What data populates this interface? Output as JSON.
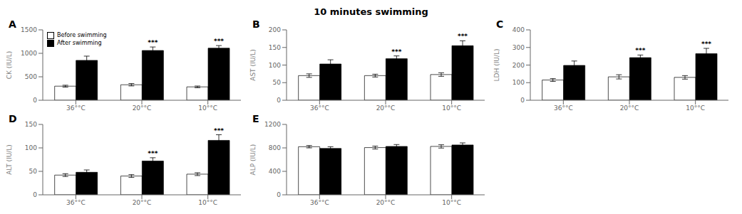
{
  "title": "10 minutes swimming",
  "chart_data": [
    {
      "type": "bar",
      "label": "A",
      "ylabel": "CK (IU/L)",
      "categories": [
        "36°°C",
        "20°°C",
        "10°°C"
      ],
      "ylim": [
        0,
        1500
      ],
      "yticks": [
        0,
        500,
        1000,
        1500
      ],
      "legend": "upper left",
      "series": [
        {
          "name": "Before swimming",
          "color": "white",
          "values": [
            300,
            330,
            285
          ],
          "errors": [
            20,
            25,
            18
          ]
        },
        {
          "name": "After swimming",
          "color": "black",
          "values": [
            850,
            1060,
            1110
          ],
          "errors": [
            90,
            75,
            55
          ]
        }
      ],
      "annotations": [
        {
          "category": "20°°C",
          "series": "After swimming",
          "text": "***"
        },
        {
          "category": "10°°C",
          "series": "After swimming",
          "text": "***"
        }
      ]
    },
    {
      "type": "bar",
      "label": "B",
      "ylabel": "AST (IU/L)",
      "categories": [
        "36°°C",
        "20°°C",
        "10°°C"
      ],
      "ylim": [
        0,
        200
      ],
      "yticks": [
        0,
        50,
        100,
        150,
        200
      ],
      "series": [
        {
          "name": "Before swimming",
          "color": "white",
          "values": [
            70,
            70,
            73
          ],
          "errors": [
            5,
            4,
            5
          ]
        },
        {
          "name": "After swimming",
          "color": "black",
          "values": [
            103,
            118,
            155
          ],
          "errors": [
            12,
            8,
            14
          ]
        }
      ],
      "annotations": [
        {
          "category": "20°°C",
          "series": "After swimming",
          "text": "***"
        },
        {
          "category": "10°°C",
          "series": "After swimming",
          "text": "***"
        }
      ]
    },
    {
      "type": "bar",
      "label": "C",
      "ylabel": "LDH (IU/L)",
      "categories": [
        "36°°C",
        "20°°C",
        "10°°C"
      ],
      "ylim": [
        0,
        400
      ],
      "yticks": [
        0,
        100,
        200,
        300,
        400
      ],
      "series": [
        {
          "name": "Before swimming",
          "color": "white",
          "values": [
            115,
            133,
            130
          ],
          "errors": [
            8,
            12,
            10
          ]
        },
        {
          "name": "After swimming",
          "color": "black",
          "values": [
            198,
            242,
            265
          ],
          "errors": [
            25,
            15,
            30
          ]
        }
      ],
      "annotations": [
        {
          "category": "20°°C",
          "series": "After swimming",
          "text": "***"
        },
        {
          "category": "10°°C",
          "series": "After swimming",
          "text": "***"
        }
      ]
    },
    {
      "type": "bar",
      "label": "D",
      "ylabel": "ALT (IU/L)",
      "categories": [
        "36°°C",
        "20°°C",
        "10°°C"
      ],
      "ylim": [
        0,
        150
      ],
      "yticks": [
        0,
        50,
        100,
        150
      ],
      "series": [
        {
          "name": "Before swimming",
          "color": "white",
          "values": [
            42,
            40,
            44
          ],
          "errors": [
            3,
            3,
            3
          ]
        },
        {
          "name": "After swimming",
          "color": "black",
          "values": [
            48,
            72,
            116
          ],
          "errors": [
            5,
            7,
            12
          ]
        }
      ],
      "annotations": [
        {
          "category": "20°°C",
          "series": "After swimming",
          "text": "***"
        },
        {
          "category": "10°°C",
          "series": "After swimming",
          "text": "***"
        }
      ]
    },
    {
      "type": "bar",
      "label": "E",
      "ylabel": "ALP (IU/L)",
      "categories": [
        "36°°C",
        "20°°C",
        "10°°C"
      ],
      "ylim": [
        0,
        1200
      ],
      "yticks": [
        0,
        400,
        800,
        1200
      ],
      "series": [
        {
          "name": "Before swimming",
          "color": "white",
          "values": [
            820,
            805,
            825
          ],
          "errors": [
            20,
            25,
            28
          ]
        },
        {
          "name": "After swimming",
          "color": "black",
          "values": [
            790,
            825,
            850
          ],
          "errors": [
            30,
            32,
            35
          ]
        }
      ],
      "annotations": []
    }
  ]
}
